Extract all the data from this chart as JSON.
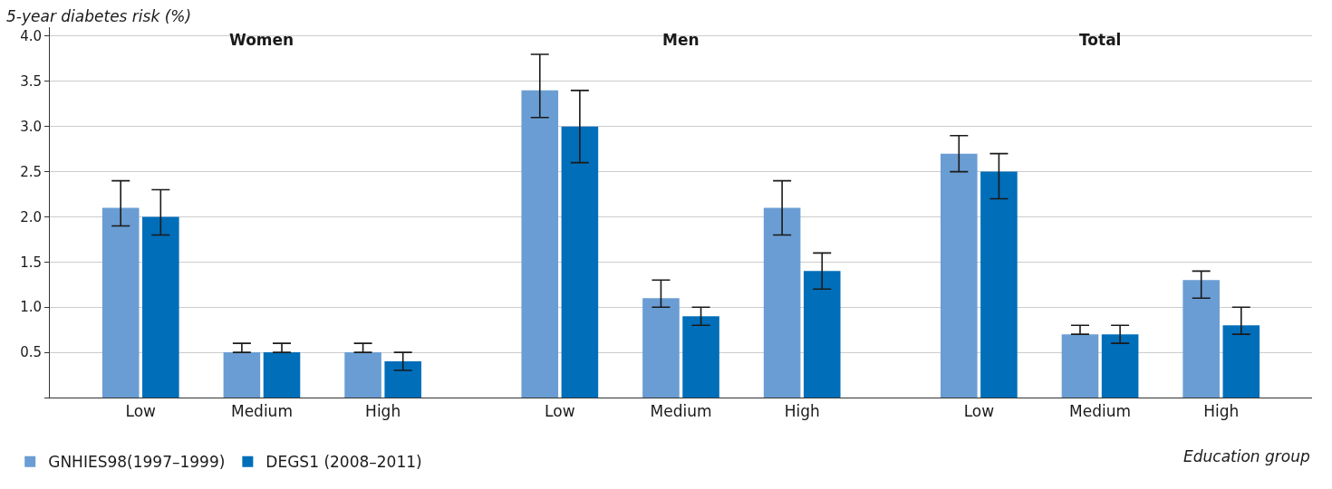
{
  "chart_data": {
    "type": "bar",
    "xlabel": "Education group",
    "ylabel": "5-year diabetes risk (%)",
    "categories": [
      "Low",
      "Medium",
      "High",
      "Low",
      "Medium",
      "High",
      "Low",
      "Medium",
      "High"
    ],
    "annotations": [
      "Women",
      "Men",
      "Total"
    ],
    "series": [
      {
        "name": "GNHIES98(1997–1999)",
        "color": "#6a9dd3",
        "values": [
          2.1,
          0.5,
          0.5,
          3.4,
          1.1,
          2.1,
          2.7,
          0.7,
          1.3
        ],
        "errors": [
          [
            1.9,
            2.4
          ],
          [
            0.5,
            0.6
          ],
          [
            0.5,
            0.6
          ],
          [
            3.1,
            3.8
          ],
          [
            1.0,
            1.3
          ],
          [
            1.8,
            2.4
          ],
          [
            2.5,
            2.9
          ],
          [
            0.7,
            0.8
          ],
          [
            1.1,
            1.4
          ]
        ]
      },
      {
        "name": "DEGS1 (2008–2011)",
        "color": "#006eb9",
        "values": [
          2.0,
          0.5,
          0.4,
          3.0,
          0.9,
          1.4,
          2.5,
          0.7,
          0.8
        ],
        "errors": [
          [
            1.8,
            2.3
          ],
          [
            0.5,
            0.6
          ],
          [
            0.3,
            0.5
          ],
          [
            2.6,
            3.4
          ],
          [
            0.8,
            1.0
          ],
          [
            1.2,
            1.6
          ],
          [
            2.2,
            2.7
          ],
          [
            0.6,
            0.8
          ],
          [
            0.7,
            1.0
          ]
        ]
      }
    ],
    "ylim": [
      0,
      4.1
    ],
    "yticks": [
      {
        "value": 0,
        "label": null
      },
      0.5,
      {
        "value": 1,
        "label": "1.0"
      },
      1.5,
      {
        "value": 2,
        "label": "2.0"
      },
      2.5,
      {
        "value": 3,
        "label": "3.0"
      },
      3.5,
      {
        "value": 4,
        "label": "4.0"
      }
    ],
    "grid": "y",
    "legend": "bottom left"
  }
}
